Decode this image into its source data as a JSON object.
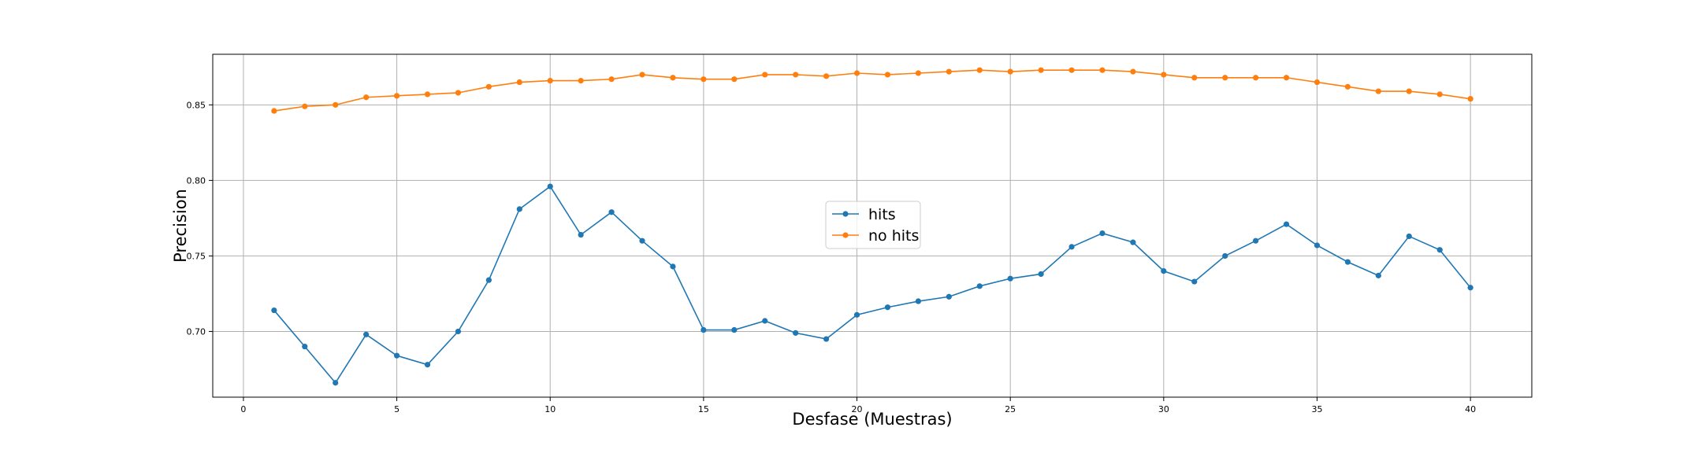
{
  "chart_data": {
    "type": "line",
    "xlabel": "Desfase (Muestras)",
    "ylabel": "Precision",
    "xlim": [
      -1,
      42
    ],
    "ylim": [
      0.6565,
      0.8835
    ],
    "xticks": [
      0,
      5,
      10,
      15,
      20,
      25,
      30,
      35,
      40
    ],
    "yticks": [
      0.7,
      0.75,
      0.8,
      0.85
    ],
    "xtick_labels": [
      "0",
      "5",
      "10",
      "15",
      "20",
      "25",
      "30",
      "35",
      "40"
    ],
    "ytick_labels": [
      "0.70",
      "0.75",
      "0.80",
      "0.85"
    ],
    "grid": true,
    "legend_position": "center",
    "x": [
      1,
      2,
      3,
      4,
      5,
      6,
      7,
      8,
      9,
      10,
      11,
      12,
      13,
      14,
      15,
      16,
      17,
      18,
      19,
      20,
      21,
      22,
      23,
      24,
      25,
      26,
      27,
      28,
      29,
      30,
      31,
      32,
      33,
      34,
      35,
      36,
      37,
      38,
      39,
      40
    ],
    "series": [
      {
        "name": "hits",
        "color": "#1f77b4",
        "values": [
          0.714,
          0.69,
          0.666,
          0.698,
          0.684,
          0.678,
          0.7,
          0.734,
          0.781,
          0.796,
          0.764,
          0.779,
          0.76,
          0.743,
          0.701,
          0.701,
          0.707,
          0.699,
          0.695,
          0.711,
          0.716,
          0.72,
          0.723,
          0.73,
          0.735,
          0.738,
          0.756,
          0.765,
          0.759,
          0.74,
          0.733,
          0.75,
          0.76,
          0.771,
          0.757,
          0.746,
          0.737,
          0.763,
          0.754,
          0.729
        ]
      },
      {
        "name": "no hits",
        "color": "#ff7f0e",
        "values": [
          0.846,
          0.849,
          0.85,
          0.855,
          0.856,
          0.857,
          0.858,
          0.862,
          0.865,
          0.866,
          0.866,
          0.867,
          0.87,
          0.868,
          0.867,
          0.867,
          0.87,
          0.87,
          0.869,
          0.871,
          0.87,
          0.871,
          0.872,
          0.873,
          0.872,
          0.873,
          0.873,
          0.873,
          0.872,
          0.87,
          0.868,
          0.868,
          0.868,
          0.868,
          0.865,
          0.862,
          0.859,
          0.859,
          0.857,
          0.854
        ]
      }
    ]
  }
}
